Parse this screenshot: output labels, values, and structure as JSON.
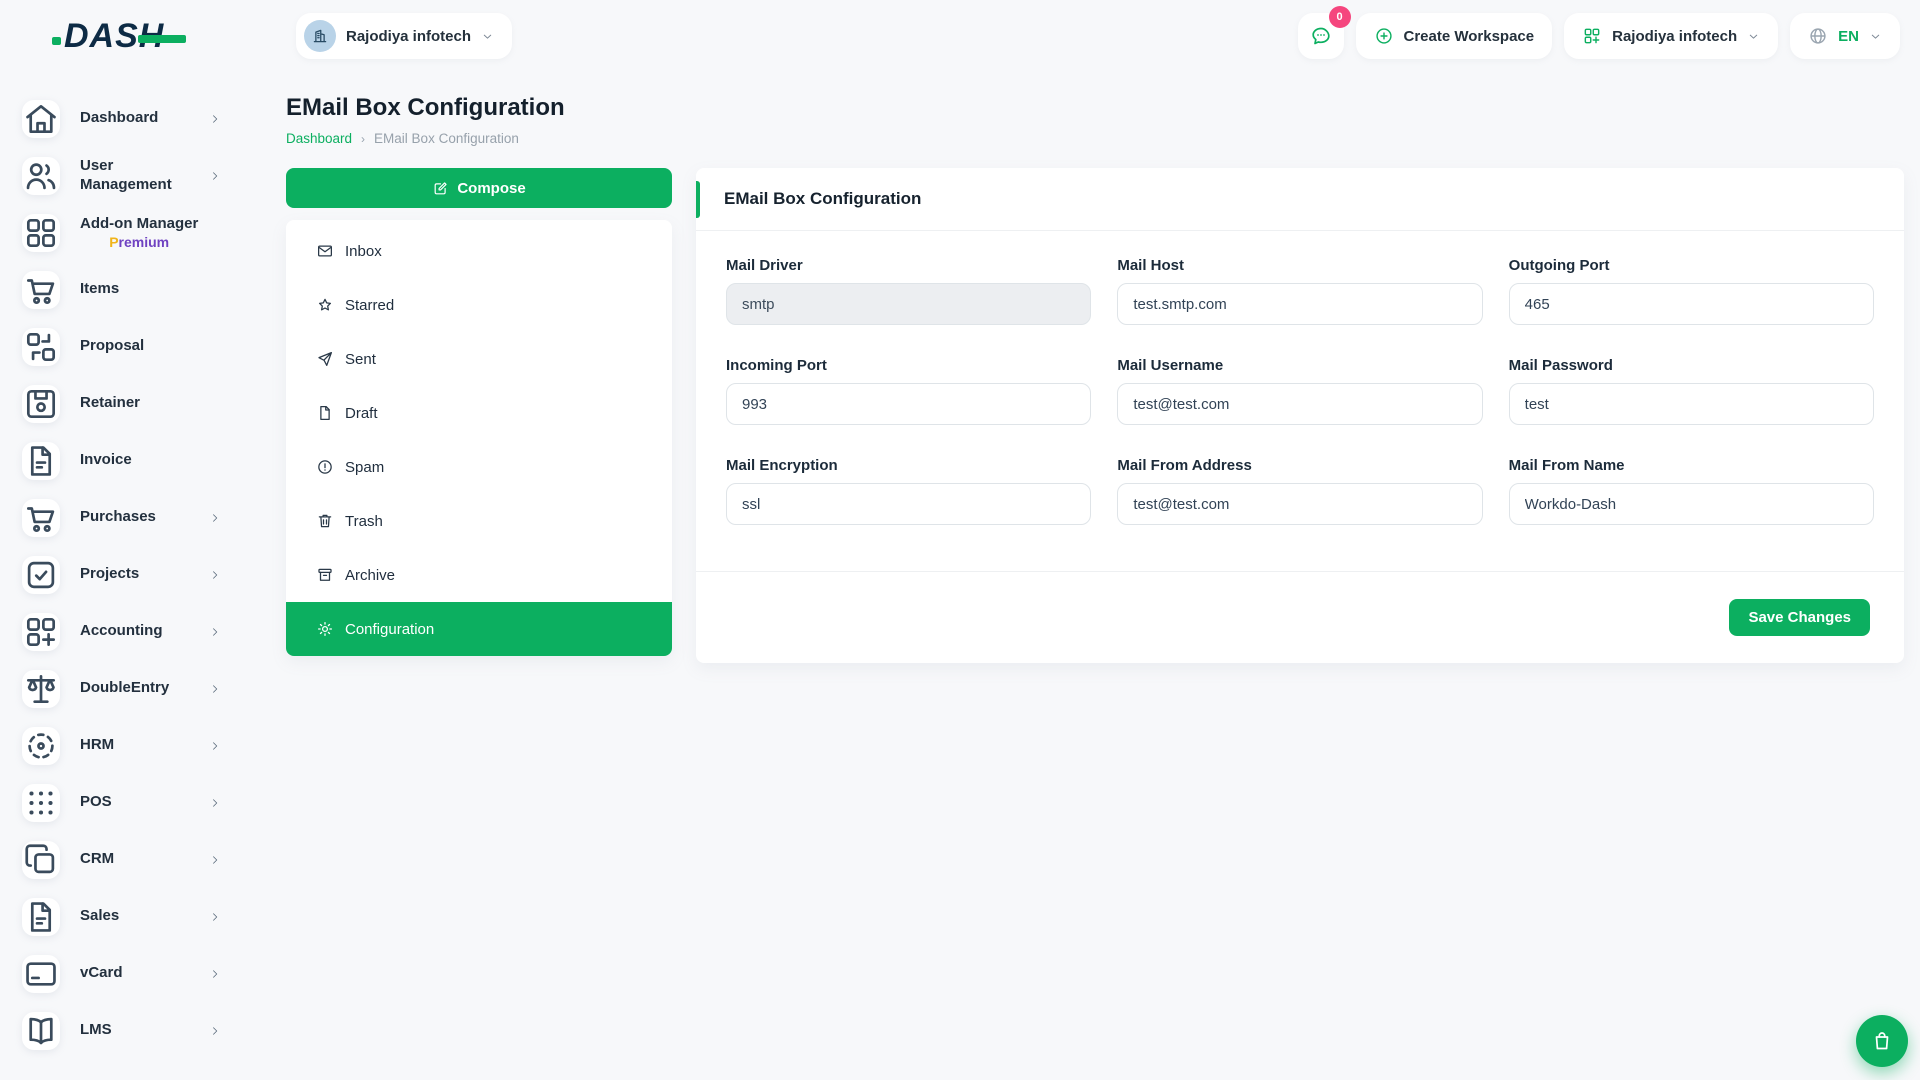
{
  "brand": {
    "logo_text": "DASH"
  },
  "topbar": {
    "workspace_selector": {
      "label": "Rajodiya infotech",
      "avatar_icon": "building-icon"
    },
    "messages": {
      "icon": "chat-bubble-icon",
      "badge": "0"
    },
    "create_workspace": {
      "label": "Create Workspace",
      "icon": "plus-circle-icon"
    },
    "company_menu": {
      "label": "Rajodiya infotech",
      "icon": "grid-plus-icon"
    },
    "language": {
      "label": "EN",
      "icon": "globe-icon"
    }
  },
  "sidebar": {
    "items": [
      {
        "label": "Dashboard",
        "icon": "home-icon",
        "has_submenu": true
      },
      {
        "label": "User Management",
        "icon": "users-icon",
        "has_submenu": true
      },
      {
        "label": "Add-on Manager",
        "icon": "grid-icon",
        "has_submenu": false,
        "badge": "Premium"
      },
      {
        "label": "Items",
        "icon": "cart-icon",
        "has_submenu": false
      },
      {
        "label": "Proposal",
        "icon": "transfer-icon",
        "has_submenu": false
      },
      {
        "label": "Retainer",
        "icon": "save-icon",
        "has_submenu": false
      },
      {
        "label": "Invoice",
        "icon": "file-text-icon",
        "has_submenu": false
      },
      {
        "label": "Purchases",
        "icon": "cart-icon",
        "has_submenu": true
      },
      {
        "label": "Projects",
        "icon": "checkbox-icon",
        "has_submenu": true
      },
      {
        "label": "Accounting",
        "icon": "grid-plus-icon",
        "has_submenu": true
      },
      {
        "label": "DoubleEntry",
        "icon": "scales-icon",
        "has_submenu": true
      },
      {
        "label": "HRM",
        "icon": "target-icon",
        "has_submenu": true
      },
      {
        "label": "POS",
        "icon": "dots-grid-icon",
        "has_submenu": true
      },
      {
        "label": "CRM",
        "icon": "copy-icon",
        "has_submenu": true
      },
      {
        "label": "Sales",
        "icon": "file-text-icon",
        "has_submenu": true
      },
      {
        "label": "vCard",
        "icon": "credit-card-icon",
        "has_submenu": true
      },
      {
        "label": "LMS",
        "icon": "book-icon",
        "has_submenu": true
      }
    ]
  },
  "page": {
    "title": "EMail Box Configuration",
    "breadcrumb": {
      "home": "Dashboard",
      "separator": "›",
      "current": "EMail Box Configuration"
    }
  },
  "mail_menu": {
    "compose_label": "Compose",
    "compose_icon": "compose-icon",
    "items": [
      {
        "label": "Inbox",
        "icon": "inbox-icon",
        "active": false
      },
      {
        "label": "Starred",
        "icon": "star-icon",
        "active": false
      },
      {
        "label": "Sent",
        "icon": "send-icon",
        "active": false
      },
      {
        "label": "Draft",
        "icon": "draft-icon",
        "active": false
      },
      {
        "label": "Spam",
        "icon": "alert-circle-icon",
        "active": false
      },
      {
        "label": "Trash",
        "icon": "trash-icon",
        "active": false
      },
      {
        "label": "Archive",
        "icon": "archive-icon",
        "active": false
      },
      {
        "label": "Configuration",
        "icon": "gear-icon",
        "active": true
      }
    ]
  },
  "config_card": {
    "title": "EMail Box Configuration",
    "fields": [
      {
        "label": "Mail Driver",
        "value": "smtp",
        "disabled": true
      },
      {
        "label": "Mail Host",
        "value": "test.smtp.com",
        "disabled": false
      },
      {
        "label": "Outgoing Port",
        "value": "465",
        "disabled": false
      },
      {
        "label": "Incoming Port",
        "value": "993",
        "disabled": false
      },
      {
        "label": "Mail Username",
        "value": "test@test.com",
        "disabled": false
      },
      {
        "label": "Mail Password",
        "value": "test",
        "disabled": false
      },
      {
        "label": "Mail Encryption",
        "value": "ssl",
        "disabled": false
      },
      {
        "label": "Mail From Address",
        "value": "test@test.com",
        "disabled": false
      },
      {
        "label": "Mail From Name",
        "value": "Workdo-Dash",
        "disabled": false
      }
    ],
    "save_label": "Save Changes"
  },
  "floating_button": {
    "icon": "shopping-bag-icon"
  },
  "colors": {
    "primary_green": "#0caf60",
    "badge_pink": "#f5467e",
    "premium_yellow": "#f0b41b",
    "premium_purple": "#6f42c1",
    "heading_navy": "#14202c",
    "page_background": "#f7f8fa"
  }
}
